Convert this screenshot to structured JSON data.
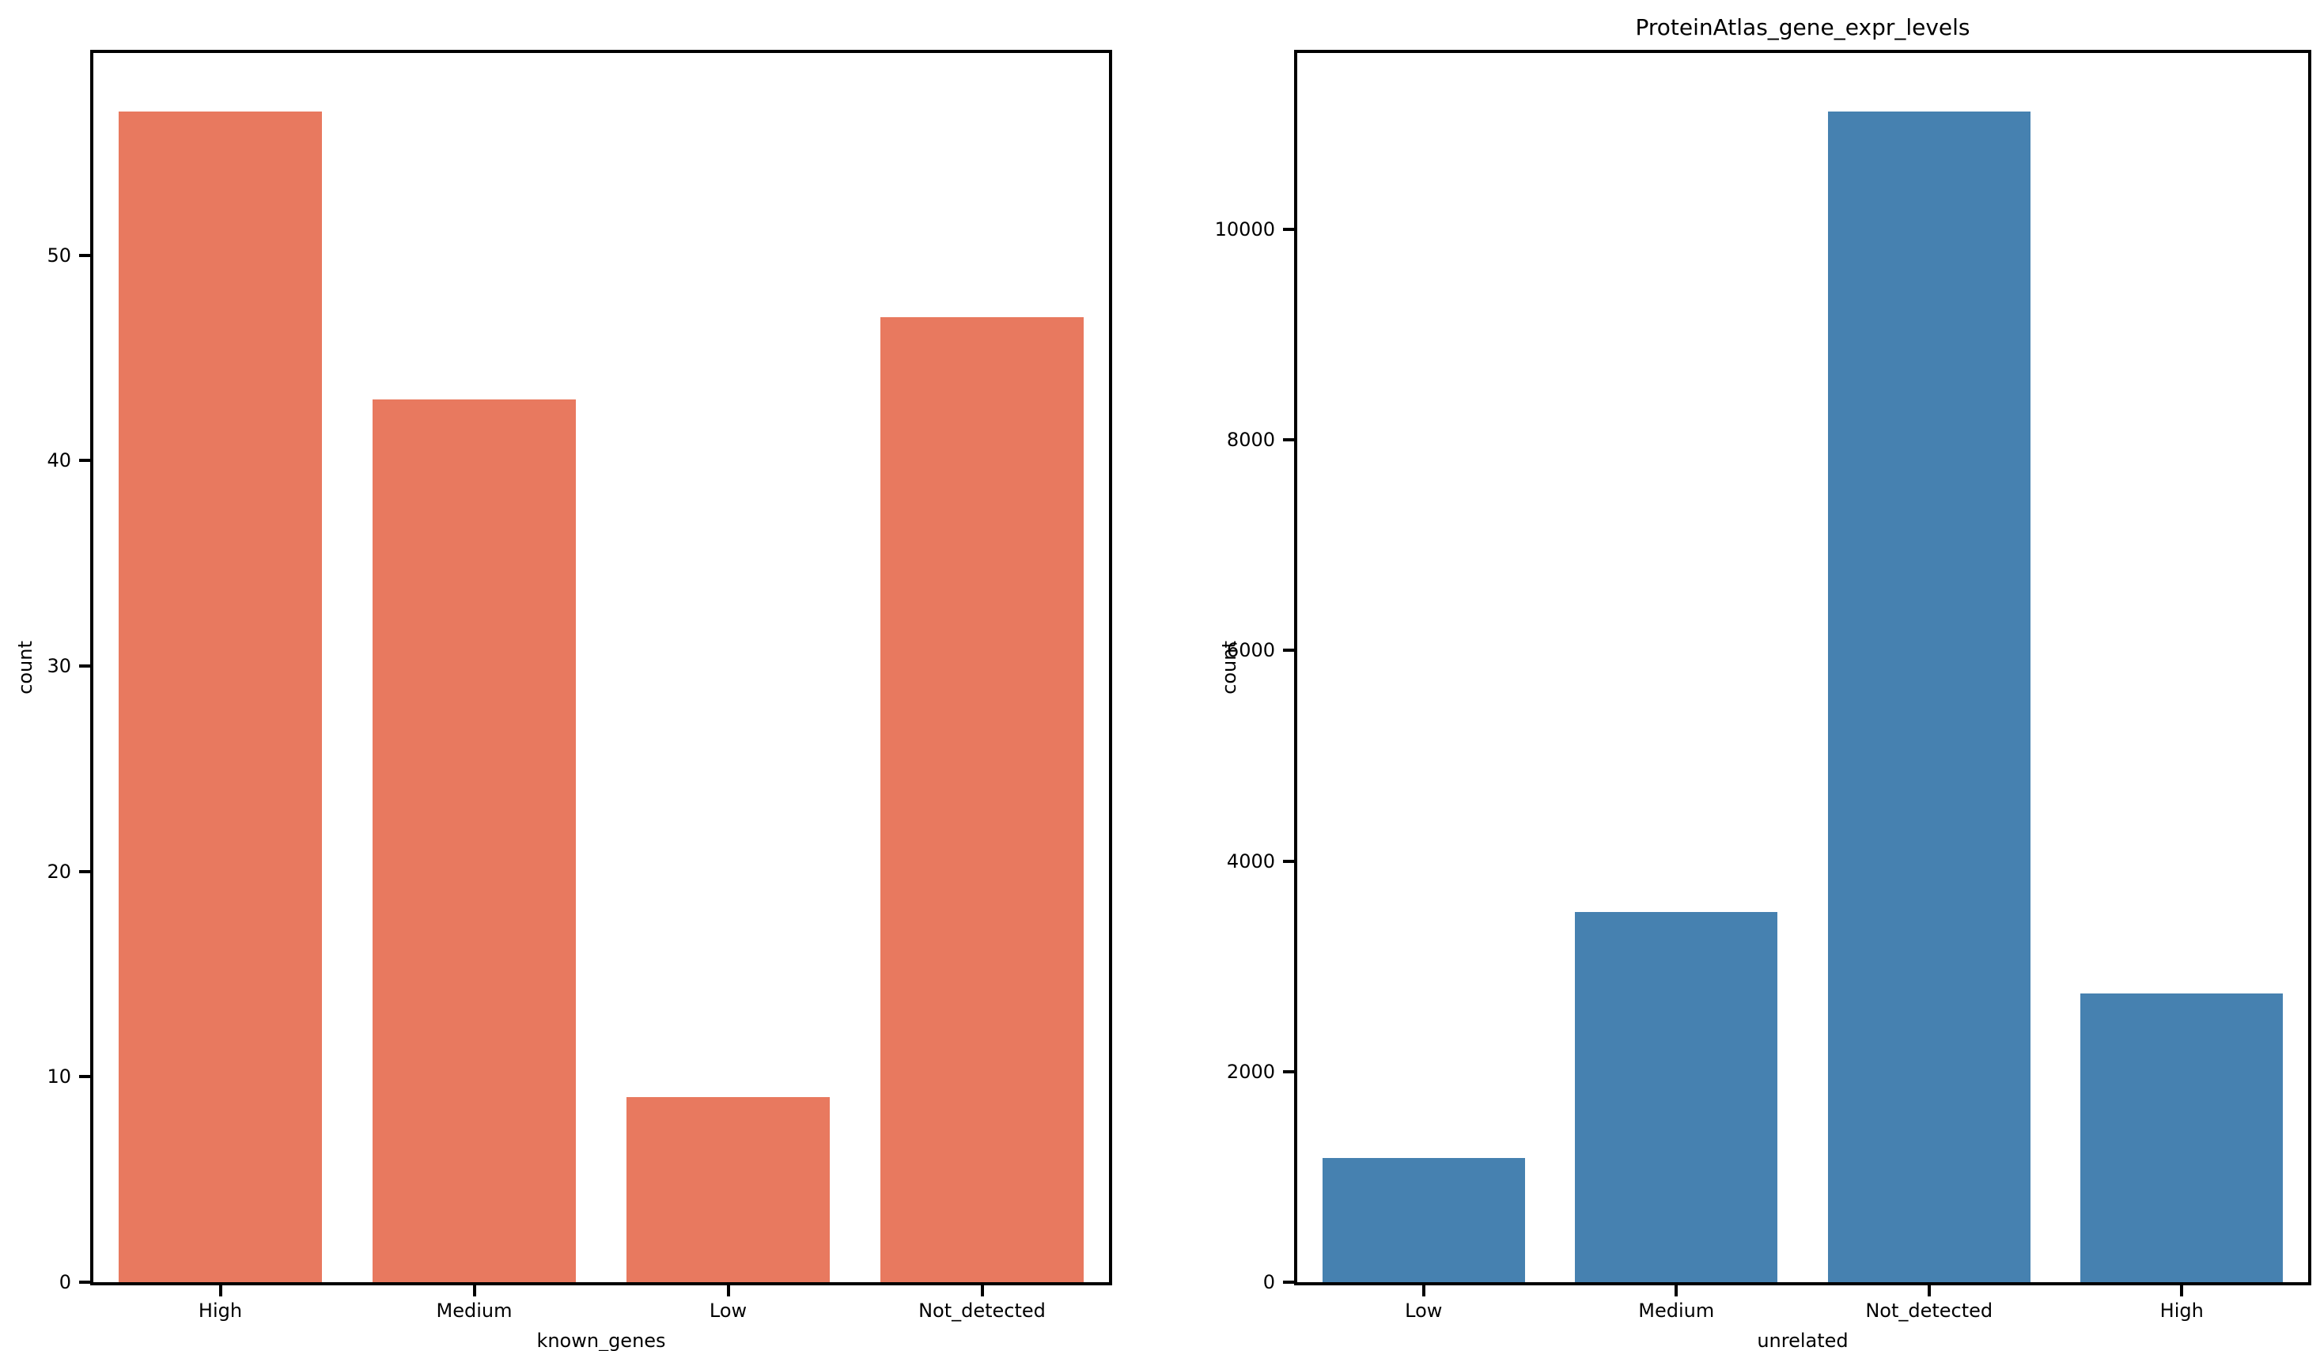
{
  "figure": {
    "background": "#ffffff",
    "axis_color": "#000000"
  },
  "chart_data": [
    {
      "type": "bar",
      "title": "",
      "categories": [
        "High",
        "Medium",
        "Low",
        "Not_detected"
      ],
      "values": [
        57,
        43,
        9,
        47
      ],
      "xlabel": "known_genes",
      "ylabel": "count",
      "yticks": [
        0,
        10,
        20,
        30,
        40,
        50
      ],
      "ylim": [
        0,
        59.85
      ],
      "bar_color": "#e8795f",
      "bar_width_fraction": 0.8,
      "grid": false,
      "legend": null
    },
    {
      "type": "bar",
      "title": "ProteinAtlas_gene_expr_levels",
      "categories": [
        "Low",
        "Medium",
        "Not_detected",
        "High"
      ],
      "values": [
        1180,
        3520,
        11120,
        2740
      ],
      "xlabel": "unrelated",
      "ylabel": "count",
      "yticks": [
        0,
        2000,
        4000,
        6000,
        8000,
        10000
      ],
      "ylim": [
        0,
        11676
      ],
      "bar_color": "#4681b0",
      "bar_width_fraction": 0.8,
      "grid": false,
      "legend": null
    }
  ]
}
